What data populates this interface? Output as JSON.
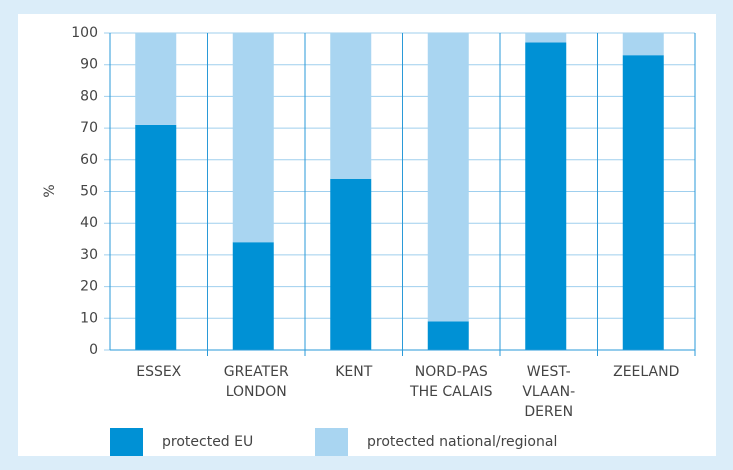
{
  "chart_data": {
    "type": "stacked_bar",
    "y_label": "%",
    "categories": [
      [
        "ESSEX"
      ],
      [
        "GREATER",
        "LONDON"
      ],
      [
        "KENT"
      ],
      [
        "NORD-PAS",
        "THE CALAIS"
      ],
      [
        "WEST-",
        "VLAAN-",
        "DEREN"
      ],
      [
        "ZEELAND"
      ]
    ],
    "series": [
      {
        "name": "protected EU",
        "color": "#0091d5",
        "values": [
          71,
          34,
          54,
          9,
          97,
          93
        ]
      },
      {
        "name": "protected national/regional",
        "color": "#a9d5f1",
        "values": [
          29,
          66,
          46,
          91,
          3,
          7
        ]
      }
    ],
    "ylim": [
      0,
      100
    ],
    "yticks": [
      0,
      10,
      20,
      30,
      40,
      50,
      60,
      70,
      80,
      90,
      100
    ],
    "grid": true
  }
}
